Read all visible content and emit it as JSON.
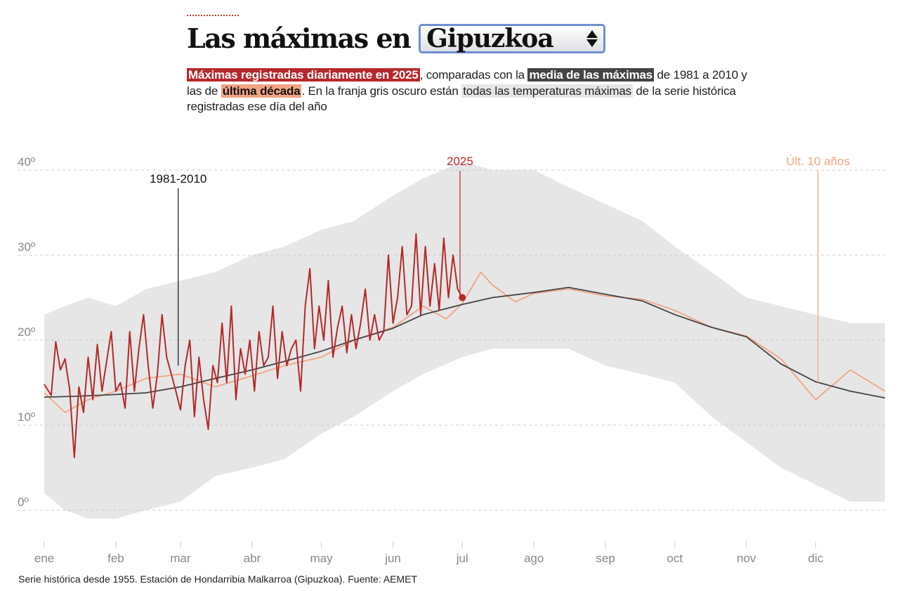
{
  "header": {
    "title": "Las máximas en",
    "province_select": {
      "value": "Gipuzkoa"
    },
    "description": {
      "part1_highlight": "Máximas registradas diariamente en 2025",
      "part2": ", comparadas con la ",
      "part3_highlight": "media de las máximas",
      "part4": " de 1981 a 2010 y las de ",
      "part5_highlight": "última década",
      "part6": ". En la franja gris oscuro están ",
      "part7_highlight": "todas las temperaturas máximas",
      "part8": " de la serie histórica registradas ese día del año"
    }
  },
  "source": "Serie histórica desde 1955. Estación de Hondarribia Malkarroa (Gipuzkoa). Fuente: AEMET",
  "colors": {
    "current_year": "#b5282b",
    "average": "#444444",
    "last_decade": "#f2a484",
    "historic_band": "#e6e6e6",
    "grid": "#cccccc",
    "tick_text": "#888888"
  },
  "chart_data": {
    "type": "line",
    "x_unit": "day of year",
    "xlim": [
      1,
      365
    ],
    "ylim": [
      -4,
      44
    ],
    "y_ticks": [
      0,
      10,
      20,
      30,
      40
    ],
    "y_tick_labels": [
      "0º",
      "10º",
      "20º",
      "30º",
      "40º"
    ],
    "grid": "horizontal dashed",
    "months": [
      {
        "label": "ene",
        "day": 1
      },
      {
        "label": "feb",
        "day": 32
      },
      {
        "label": "mar",
        "day": 60
      },
      {
        "label": "abr",
        "day": 91
      },
      {
        "label": "may",
        "day": 121
      },
      {
        "label": "jun",
        "day": 152
      },
      {
        "label": "jul",
        "day": 182
      },
      {
        "label": "ago",
        "day": 213
      },
      {
        "label": "sep",
        "day": 244
      },
      {
        "label": "oct",
        "day": 274
      },
      {
        "label": "nov",
        "day": 305
      },
      {
        "label": "dic",
        "day": 335
      }
    ],
    "annotations": [
      {
        "label": "1981-2010",
        "day": 59,
        "value_at": 17,
        "series": "average"
      },
      {
        "label": "2025",
        "day": 181,
        "value_at": 25,
        "series": "current_year"
      },
      {
        "label": "Últ. 10 años",
        "day": 336,
        "value_at": 15,
        "series": "last_decade"
      }
    ],
    "band_historic": {
      "days": [
        1,
        10,
        20,
        32,
        45,
        60,
        75,
        91,
        105,
        121,
        135,
        152,
        165,
        182,
        195,
        213,
        228,
        244,
        260,
        274,
        290,
        305,
        320,
        335,
        350,
        365
      ],
      "lower": [
        2,
        0,
        -1,
        -1,
        0,
        1,
        4,
        5,
        6,
        9,
        11,
        14,
        16,
        18,
        19,
        19,
        19,
        17,
        16,
        15,
        11,
        8,
        5,
        3,
        1,
        1
      ],
      "upper": [
        23,
        24,
        25,
        24,
        26,
        27,
        28,
        30,
        31,
        33,
        34,
        37,
        39,
        41,
        40,
        40,
        38,
        36,
        34,
        31,
        28,
        25,
        24,
        23,
        22,
        22
      ]
    },
    "series": [
      {
        "name": "1981-2010",
        "key": "average",
        "days": [
          1,
          15,
          32,
          45,
          60,
          75,
          91,
          105,
          121,
          135,
          152,
          165,
          182,
          195,
          213,
          228,
          244,
          260,
          274,
          290,
          305,
          320,
          335,
          350,
          365
        ],
        "values": [
          13.3,
          13.4,
          13.6,
          13.8,
          14.5,
          15.5,
          16.5,
          17.5,
          18.7,
          20,
          21.4,
          23,
          24.2,
          25,
          25.6,
          26.2,
          25.4,
          24.6,
          23,
          21.5,
          20.4,
          17.2,
          15.1,
          14,
          13.2
        ]
      },
      {
        "name": "Últ. 10 años",
        "key": "last_decade",
        "days": [
          1,
          10,
          20,
          32,
          45,
          60,
          75,
          91,
          105,
          121,
          135,
          152,
          165,
          175,
          182,
          190,
          195,
          205,
          213,
          228,
          244,
          260,
          274,
          290,
          305,
          320,
          335,
          350,
          365
        ],
        "values": [
          13.8,
          11.5,
          13,
          14,
          15.5,
          16,
          14.5,
          15.8,
          17,
          18,
          20,
          21.5,
          24,
          22.5,
          24.3,
          28,
          26.5,
          24.5,
          25.5,
          26,
          25.2,
          24.8,
          23.5,
          21.5,
          20.5,
          17.8,
          13,
          16.5,
          14
        ]
      },
      {
        "name": "2025",
        "key": "current_year",
        "days": [
          1,
          4,
          6,
          8,
          10,
          12,
          14,
          16,
          18,
          20,
          22,
          24,
          26,
          28,
          30,
          32,
          34,
          36,
          38,
          40,
          42,
          44,
          46,
          48,
          50,
          52,
          54,
          56,
          58,
          60,
          62,
          64,
          66,
          68,
          70,
          72,
          74,
          76,
          78,
          80,
          82,
          84,
          86,
          88,
          90,
          92,
          94,
          96,
          98,
          100,
          102,
          104,
          106,
          108,
          110,
          112,
          114,
          116,
          118,
          120,
          122,
          124,
          126,
          128,
          130,
          132,
          134,
          136,
          138,
          140,
          142,
          144,
          146,
          148,
          150,
          152,
          154,
          156,
          158,
          160,
          162,
          164,
          166,
          168,
          170,
          172,
          174,
          176,
          178,
          180,
          182
        ],
        "values": [
          14.8,
          13.5,
          19.8,
          16.5,
          17.8,
          14.2,
          6.2,
          14.5,
          11.5,
          18,
          13,
          19.5,
          14,
          17.5,
          21,
          14,
          15,
          12,
          21,
          14,
          19,
          23,
          17,
          12,
          16,
          23,
          18,
          16,
          14,
          11.8,
          17,
          20,
          11,
          18,
          13,
          9.5,
          17,
          15,
          22,
          15,
          24,
          13,
          19,
          16,
          20,
          14,
          21,
          17,
          18,
          24,
          15.5,
          21,
          17,
          19,
          20,
          14,
          24,
          28.4,
          19,
          24,
          20,
          27,
          18,
          21.5,
          24,
          18.5,
          23,
          19,
          22,
          26,
          20,
          23,
          20,
          21,
          30,
          22,
          25,
          31,
          23,
          24,
          32.5,
          23,
          31,
          24,
          29,
          23.5,
          32,
          25,
          30,
          26,
          25.0
        ]
      }
    ]
  }
}
